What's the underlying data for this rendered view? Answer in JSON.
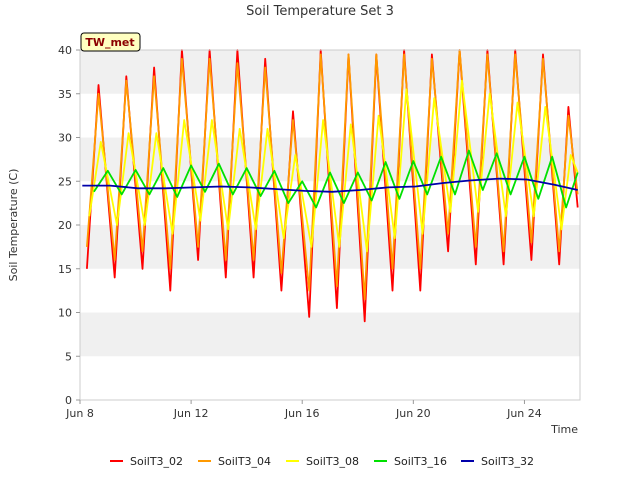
{
  "chart_data": {
    "type": "line",
    "title": "Soil Temperature Set 3",
    "xlabel": "Time",
    "ylabel": "Soil Temperature (C)",
    "badge": "TW_met",
    "ylim": [
      0,
      40
    ],
    "xlim": [
      "2024-06-08",
      "2024-06-26"
    ],
    "yticks": [
      0,
      5,
      10,
      15,
      20,
      25,
      30,
      35,
      40
    ],
    "xticks": [
      {
        "date": "2024-06-08",
        "label": "Jun 8"
      },
      {
        "date": "2024-06-12",
        "label": "Jun 12"
      },
      {
        "date": "2024-06-16",
        "label": "Jun 16"
      },
      {
        "date": "2024-06-20",
        "label": "Jun 20"
      },
      {
        "date": "2024-06-24",
        "label": "Jun 24"
      }
    ],
    "grid": "horizontal bands",
    "legend_position": "bottom",
    "series": [
      {
        "name": "SoilT3_02",
        "color": "#ff0000",
        "x": [
          "2024-06-08 06:00",
          "2024-06-08 16:00",
          "2024-06-09 06:00",
          "2024-06-09 16:00",
          "2024-06-10 06:00",
          "2024-06-10 16:00",
          "2024-06-11 06:00",
          "2024-06-11 16:00",
          "2024-06-12 06:00",
          "2024-06-12 16:00",
          "2024-06-13 06:00",
          "2024-06-13 16:00",
          "2024-06-14 06:00",
          "2024-06-14 16:00",
          "2024-06-15 06:00",
          "2024-06-15 16:00",
          "2024-06-16 06:00",
          "2024-06-16 16:00",
          "2024-06-17 06:00",
          "2024-06-17 16:00",
          "2024-06-18 06:00",
          "2024-06-18 16:00",
          "2024-06-19 06:00",
          "2024-06-19 16:00",
          "2024-06-20 06:00",
          "2024-06-20 16:00",
          "2024-06-21 06:00",
          "2024-06-21 16:00",
          "2024-06-22 06:00",
          "2024-06-22 16:00",
          "2024-06-23 06:00",
          "2024-06-23 16:00",
          "2024-06-24 06:00",
          "2024-06-24 16:00",
          "2024-06-25 06:00",
          "2024-06-25 14:00",
          "2024-06-25 22:00"
        ],
        "y": [
          15.0,
          36.0,
          14.0,
          37.0,
          15.0,
          38.0,
          12.5,
          40.0,
          16.0,
          40.0,
          14.0,
          40.0,
          14.0,
          39.0,
          12.5,
          33.0,
          9.5,
          40.0,
          10.5,
          39.5,
          9.0,
          39.5,
          12.5,
          40.0,
          12.5,
          39.5,
          17.0,
          40.0,
          15.5,
          40.0,
          15.5,
          40.0,
          16.0,
          39.5,
          15.5,
          33.5,
          22.0
        ]
      },
      {
        "name": "SoilT3_04",
        "color": "#ff9900",
        "x": [
          "2024-06-08 06:00",
          "2024-06-08 16:00",
          "2024-06-09 06:00",
          "2024-06-09 16:00",
          "2024-06-10 06:00",
          "2024-06-10 16:00",
          "2024-06-11 06:00",
          "2024-06-11 16:00",
          "2024-06-12 06:00",
          "2024-06-12 16:00",
          "2024-06-13 06:00",
          "2024-06-13 16:00",
          "2024-06-14 06:00",
          "2024-06-14 16:00",
          "2024-06-15 06:00",
          "2024-06-15 16:00",
          "2024-06-16 06:00",
          "2024-06-16 16:00",
          "2024-06-17 06:00",
          "2024-06-17 16:00",
          "2024-06-18 06:00",
          "2024-06-18 16:00",
          "2024-06-19 06:00",
          "2024-06-19 16:00",
          "2024-06-20 06:00",
          "2024-06-20 16:00",
          "2024-06-21 06:00",
          "2024-06-21 16:00",
          "2024-06-22 06:00",
          "2024-06-22 16:00",
          "2024-06-23 06:00",
          "2024-06-23 16:00",
          "2024-06-24 06:00",
          "2024-06-24 16:00",
          "2024-06-25 06:00",
          "2024-06-25 14:00",
          "2024-06-25 22:00"
        ],
        "y": [
          17.5,
          35.0,
          16.0,
          36.5,
          17.0,
          37.0,
          15.0,
          39.0,
          17.5,
          39.0,
          16.0,
          38.5,
          16.0,
          38.0,
          14.5,
          32.0,
          12.5,
          39.5,
          13.0,
          39.5,
          11.5,
          39.5,
          15.0,
          39.5,
          15.0,
          39.0,
          19.0,
          40.0,
          17.5,
          39.5,
          17.0,
          39.5,
          18.0,
          39.0,
          17.0,
          32.5,
          23.5
        ]
      },
      {
        "name": "SoilT3_08",
        "color": "#ffff00",
        "x": [
          "2024-06-08 08:00",
          "2024-06-08 18:00",
          "2024-06-09 08:00",
          "2024-06-09 18:00",
          "2024-06-10 08:00",
          "2024-06-10 18:00",
          "2024-06-11 08:00",
          "2024-06-11 18:00",
          "2024-06-12 08:00",
          "2024-06-12 18:00",
          "2024-06-13 08:00",
          "2024-06-13 18:00",
          "2024-06-14 08:00",
          "2024-06-14 18:00",
          "2024-06-15 08:00",
          "2024-06-15 18:00",
          "2024-06-16 08:00",
          "2024-06-16 18:00",
          "2024-06-17 08:00",
          "2024-06-17 18:00",
          "2024-06-18 08:00",
          "2024-06-18 18:00",
          "2024-06-19 08:00",
          "2024-06-19 18:00",
          "2024-06-20 08:00",
          "2024-06-20 18:00",
          "2024-06-21 08:00",
          "2024-06-21 18:00",
          "2024-06-22 08:00",
          "2024-06-22 18:00",
          "2024-06-23 08:00",
          "2024-06-23 18:00",
          "2024-06-24 08:00",
          "2024-06-24 18:00",
          "2024-06-25 08:00",
          "2024-06-25 16:00",
          "2024-06-25 22:00"
        ],
        "y": [
          21.0,
          29.5,
          20.0,
          30.5,
          20.0,
          30.5,
          19.0,
          32.0,
          20.5,
          32.0,
          19.5,
          31.0,
          19.5,
          31.0,
          18.5,
          28.0,
          17.5,
          32.0,
          17.5,
          31.5,
          17.0,
          32.5,
          18.5,
          35.5,
          19.0,
          34.5,
          21.5,
          36.5,
          21.5,
          35.0,
          21.0,
          34.0,
          21.0,
          33.5,
          19.5,
          28.0,
          26.0
        ]
      },
      {
        "name": "SoilT3_16",
        "color": "#00e000",
        "x": [
          "2024-06-08 12:00",
          "2024-06-09 00:00",
          "2024-06-09 12:00",
          "2024-06-10 00:00",
          "2024-06-10 12:00",
          "2024-06-11 00:00",
          "2024-06-11 12:00",
          "2024-06-12 00:00",
          "2024-06-12 12:00",
          "2024-06-13 00:00",
          "2024-06-13 12:00",
          "2024-06-14 00:00",
          "2024-06-14 12:00",
          "2024-06-15 00:00",
          "2024-06-15 12:00",
          "2024-06-16 00:00",
          "2024-06-16 12:00",
          "2024-06-17 00:00",
          "2024-06-17 12:00",
          "2024-06-18 00:00",
          "2024-06-18 12:00",
          "2024-06-19 00:00",
          "2024-06-19 12:00",
          "2024-06-20 00:00",
          "2024-06-20 12:00",
          "2024-06-21 00:00",
          "2024-06-21 12:00",
          "2024-06-22 00:00",
          "2024-06-22 12:00",
          "2024-06-23 00:00",
          "2024-06-23 12:00",
          "2024-06-24 00:00",
          "2024-06-24 12:00",
          "2024-06-25 00:00",
          "2024-06-25 12:00",
          "2024-06-25 22:00"
        ],
        "y": [
          23.8,
          26.2,
          23.5,
          26.3,
          23.5,
          26.5,
          23.2,
          26.8,
          23.8,
          27.0,
          23.5,
          26.5,
          23.3,
          26.2,
          22.5,
          25.0,
          22.0,
          26.0,
          22.5,
          26.0,
          22.8,
          27.2,
          23.0,
          27.3,
          23.5,
          27.8,
          23.5,
          28.5,
          24.0,
          28.2,
          23.5,
          27.8,
          23.0,
          27.8,
          22.0,
          26.0
        ]
      },
      {
        "name": "SoilT3_32",
        "color": "#0000aa",
        "x": [
          "2024-06-08 02:00",
          "2024-06-09 02:00",
          "2024-06-10 02:00",
          "2024-06-11 02:00",
          "2024-06-12 02:00",
          "2024-06-13 02:00",
          "2024-06-14 02:00",
          "2024-06-15 02:00",
          "2024-06-16 02:00",
          "2024-06-17 02:00",
          "2024-06-18 02:00",
          "2024-06-19 02:00",
          "2024-06-20 02:00",
          "2024-06-21 02:00",
          "2024-06-22 02:00",
          "2024-06-23 02:00",
          "2024-06-24 02:00",
          "2024-06-25 02:00",
          "2024-06-25 22:00"
        ],
        "y": [
          24.5,
          24.5,
          24.2,
          24.2,
          24.3,
          24.4,
          24.3,
          24.1,
          23.9,
          23.8,
          24.0,
          24.3,
          24.4,
          24.8,
          25.1,
          25.3,
          25.2,
          24.6,
          24.0
        ]
      }
    ]
  }
}
